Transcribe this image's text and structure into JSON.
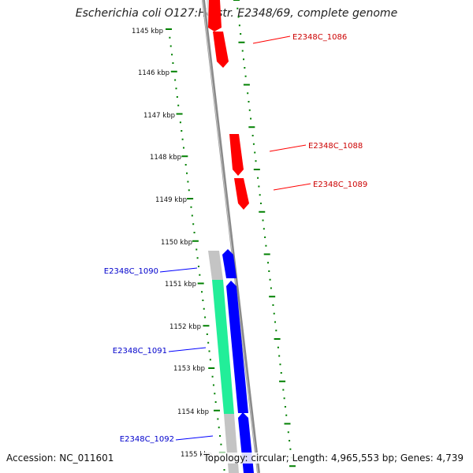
{
  "title": "Escherichia coli O127:H6 str. E2348/69, complete genome",
  "accession_text": "Accession: NC_011601",
  "summary_text": "Topology: circular; Length: 4,965,553 bp; Genes: 4,739",
  "colors": {
    "forward_gene": "#ff0000",
    "reverse_gene": "#0000ff",
    "gc_skew": "#00ff99",
    "backbone": "#888888",
    "tick": "#007700"
  },
  "ruler": [
    "1145 kbp",
    "1146 kbp",
    "1147 kbp",
    "1148 kbp",
    "1149 kbp",
    "1150 kbp",
    "1151 kbp",
    "1152 kbp",
    "1153 kbp",
    "1154 kbp",
    "1155 kbp"
  ],
  "gene_labels": [
    {
      "text": "E2348C_1086",
      "strand": "forward"
    },
    {
      "text": "E2348C_1088",
      "strand": "forward"
    },
    {
      "text": "E2348C_1089",
      "strand": "forward"
    },
    {
      "text": "E2348C_1090",
      "strand": "reverse"
    },
    {
      "text": "E2348C_1091",
      "strand": "reverse"
    },
    {
      "text": "E2348C_1092",
      "strand": "reverse"
    }
  ]
}
